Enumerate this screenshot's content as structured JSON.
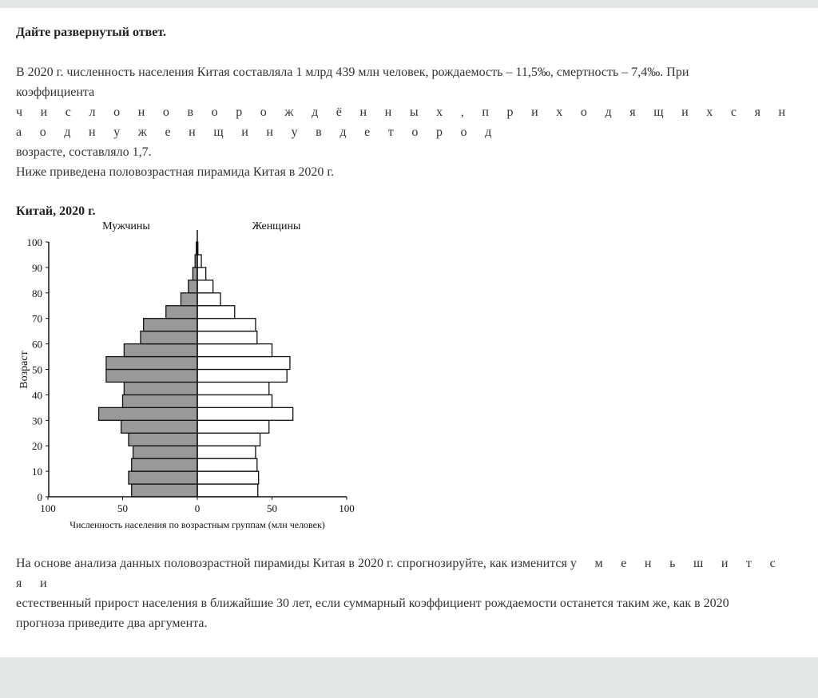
{
  "heading": "Дайте развернутый ответ.",
  "intro": {
    "line1": "В 2020 г. численность населения Китая составляла 1 млрд 439 млн человек, рождаемость – 11,5‰, смертность – 7,4‰. При",
    "line2": "коэффициента",
    "line3": " ч и с л о н о в о р о ж д ё н н ы х , п р и х о д я щ и х с я н а о д н у ж е н щ и н у в д е т о р о д",
    "line4": "возрасте, составляло 1,7.",
    "line5": "Ниже приведена половозрастная пирамида Китая в 2020 г."
  },
  "chart_title": "Китай, 2020 г.",
  "chart_data": {
    "type": "bar",
    "orientation": "horizontal-pyramid",
    "title": "Китай, 2020 г.",
    "ylabel": "Возраст",
    "xlabel": "Численность населения по возрастным группам (млн человек)",
    "xlim": [
      -100,
      100
    ],
    "ylim": [
      0,
      100
    ],
    "x_ticks": [
      "100",
      "50",
      "0",
      "50",
      "100"
    ],
    "y_ticks": [
      "0",
      "10",
      "20",
      "30",
      "40",
      "50",
      "60",
      "70",
      "80",
      "90",
      "100"
    ],
    "age_groups_start": [
      0,
      5,
      10,
      15,
      20,
      25,
      30,
      35,
      40,
      45,
      50,
      55,
      60,
      65,
      70,
      75,
      80,
      85,
      90,
      95
    ],
    "grid": false,
    "series": [
      {
        "name": "Мужчины",
        "color": "#999999",
        "values": [
          44,
          46,
          44,
          43,
          46,
          51,
          66,
          50,
          49,
          61,
          61,
          49,
          38,
          36,
          21,
          11,
          6,
          3,
          1.5,
          0.7
        ]
      },
      {
        "name": "Женщины",
        "color": "#ffffff",
        "values": [
          40.5,
          41,
          40,
          39,
          42,
          48,
          64,
          50,
          48,
          60,
          62,
          50,
          40,
          39,
          25,
          15.5,
          10.5,
          5.7,
          2.7,
          0.4
        ]
      }
    ]
  },
  "question": {
    "line1": "На основе анализа данных половозрастной пирамиды Китая в 2020 г. спрогнозируйте, как изменится",
    "line1_spaced": "у м е н ь ш и т с я и",
    "line2": "естественный прирост населения в ближайшие 30 лет, если суммарный коэффициент рождаемости останется таким же, как в 2020",
    "line3": "прогноза приведите два аргумента."
  }
}
